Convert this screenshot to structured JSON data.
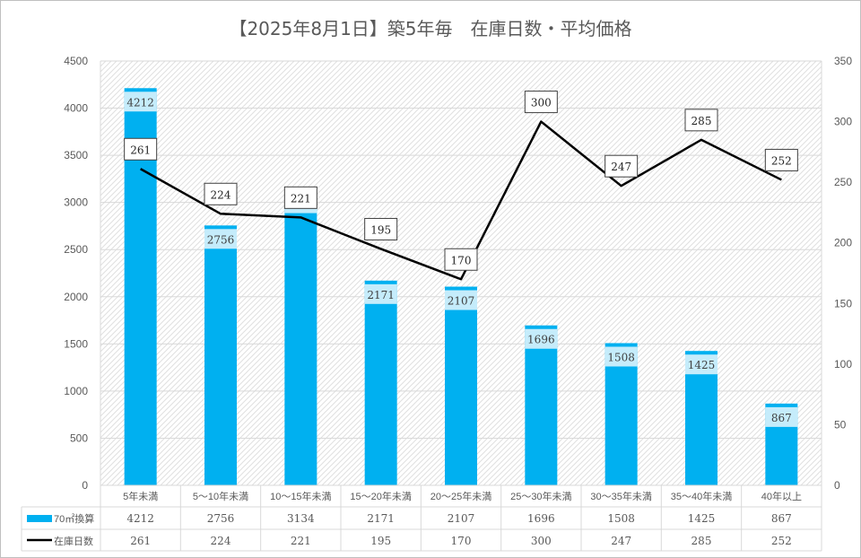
{
  "chart_data": {
    "type": "bar+line",
    "title": "【2025年8月1日】築5年毎　在庫日数・平均価格",
    "categories": [
      "5年未満",
      "5～10年未満",
      "10～15年未満",
      "15～20年未満",
      "20～25年未満",
      "25～30年未満",
      "30～35年未満",
      "35～40年未満",
      "40年以上"
    ],
    "series": [
      {
        "name": "70㎡換算",
        "type": "bar",
        "axis": "left",
        "color": "#00b0f0",
        "values": [
          4212,
          2756,
          3134,
          2171,
          2107,
          1696,
          1508,
          1425,
          867
        ]
      },
      {
        "name": "在庫日数",
        "type": "line",
        "axis": "right",
        "color": "#000000",
        "values": [
          261,
          224,
          221,
          195,
          170,
          300,
          247,
          285,
          252
        ]
      }
    ],
    "y_left": {
      "min": 0,
      "max": 4500,
      "ticks": [
        "0",
        "500",
        "1000",
        "1500",
        "2000",
        "2500",
        "3000",
        "3500",
        "4000",
        "4500"
      ]
    },
    "y_right": {
      "min": 0,
      "max": 350,
      "ticks": [
        "0",
        "50",
        "100",
        "150",
        "200",
        "250",
        "300",
        "350"
      ]
    },
    "grid": true,
    "data_table": true
  }
}
